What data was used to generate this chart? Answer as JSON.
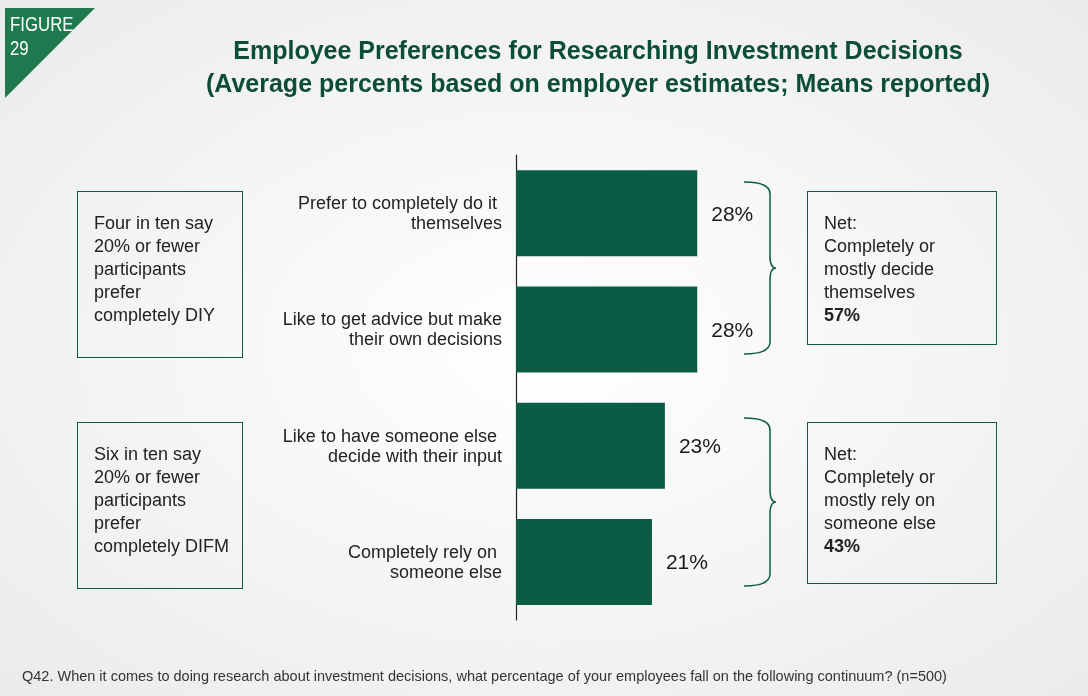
{
  "chart_data": {
    "type": "bar",
    "orientation": "horizontal",
    "title": "Employee Preferences for Researching Investment Decisions",
    "subtitle": "(Average percents based on employer estimates; Means reported)",
    "categories": [
      "Prefer to completely do it themselves",
      "Like to get advice but make their own decisions",
      "Like to have someone else decide with their input",
      "Completely rely on someone else"
    ],
    "values": [
      28,
      28,
      23,
      21
    ],
    "value_labels": [
      "28%",
      "28%",
      "23%",
      "21%"
    ],
    "color": "#0a5c45",
    "annotations": [
      "FIGURE 29",
      "Four in ten say 20% or fewer participants prefer completely DIY",
      "Net:\nCompletely or mostly decide themselves",
      "57%",
      "Six in ten say 20% or fewer participants prefer completely DIFM",
      "Net:\nCompletely or mostly rely on someone else",
      "43%",
      "Q42. When it comes to doing research about investment decisions, what percentage of your employees fall on the following continuum? (n=500)"
    ]
  }
}
